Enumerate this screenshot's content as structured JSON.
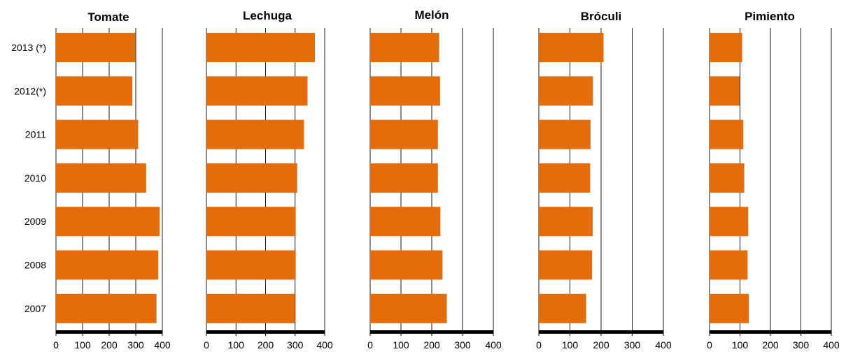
{
  "chart_data": [
    {
      "type": "bar",
      "orientation": "horizontal",
      "title": "Tomate",
      "categories": [
        "2013 (*)",
        "2012(*)",
        "2011",
        "2010",
        "2009",
        "2008",
        "2007"
      ],
      "values": [
        298,
        287,
        309,
        339,
        390,
        385,
        378
      ],
      "xlim": [
        0,
        400
      ],
      "xticks": [
        0,
        100,
        200,
        300,
        400
      ],
      "grid": true,
      "color": "#E46C0A"
    },
    {
      "type": "bar",
      "orientation": "horizontal",
      "title": "Lechuga",
      "categories": [
        "2013 (*)",
        "2012(*)",
        "2011",
        "2010",
        "2009",
        "2008",
        "2007"
      ],
      "values": [
        367,
        342,
        330,
        307,
        302,
        302,
        300
      ],
      "xlim": [
        0,
        400
      ],
      "xticks": [
        0,
        100,
        200,
        300,
        400
      ],
      "grid": true,
      "color": "#E46C0A"
    },
    {
      "type": "bar",
      "orientation": "horizontal",
      "title": "Melón",
      "categories": [
        "2013 (*)",
        "2012(*)",
        "2011",
        "2010",
        "2009",
        "2008",
        "2007"
      ],
      "values": [
        224,
        227,
        220,
        220,
        228,
        235,
        249
      ],
      "xlim": [
        0,
        400
      ],
      "xticks": [
        0,
        100,
        200,
        300,
        400
      ],
      "grid": true,
      "color": "#E46C0A"
    },
    {
      "type": "bar",
      "orientation": "horizontal",
      "title": "Bróculi",
      "categories": [
        "2013 (*)",
        "2012(*)",
        "2011",
        "2010",
        "2009",
        "2008",
        "2007"
      ],
      "values": [
        208,
        174,
        166,
        165,
        173,
        171,
        152
      ],
      "xlim": [
        0,
        400
      ],
      "xticks": [
        0,
        100,
        200,
        300,
        400
      ],
      "grid": true,
      "color": "#E46C0A"
    },
    {
      "type": "bar",
      "orientation": "horizontal",
      "title": "Pimiento",
      "categories": [
        "2013 (*)",
        "2012(*)",
        "2011",
        "2010",
        "2009",
        "2008",
        "2007"
      ],
      "values": [
        107,
        99,
        111,
        114,
        127,
        125,
        129
      ],
      "xlim": [
        0,
        400
      ],
      "xticks": [
        0,
        100,
        200,
        300,
        400
      ],
      "grid": true,
      "color": "#E46C0A"
    }
  ]
}
